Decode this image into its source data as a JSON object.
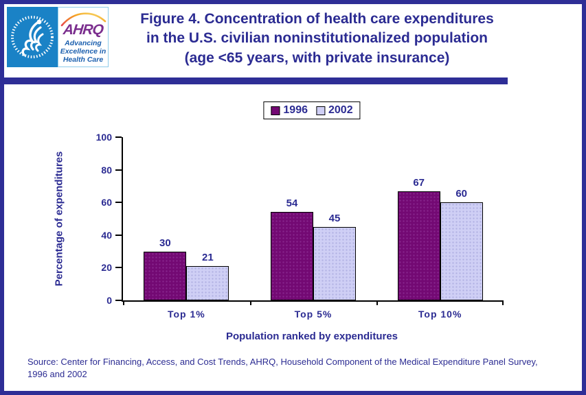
{
  "page": {
    "title_lines": [
      "Figure 4. Concentration of health care expenditures",
      "in the U.S. civilian noninstitutionalized population",
      "(age <65 years, with private insurance)"
    ],
    "source_note": "Source: Center for Financing, Access, and Cost Trends, AHRQ, Household Component of the Medical Expenditure Panel Survey,\n1996 and 2002"
  },
  "logo": {
    "hhs_icon": "hhs-eagle-seal",
    "ahrq_word": "AHRQ",
    "tagline_lines": [
      "Advancing",
      "Excellence in",
      "Health Care"
    ]
  },
  "colors": {
    "navy": "#2b2b92",
    "series_1996": "#730973",
    "series_2002": "#cfcff5",
    "hhs_blue": "#1a82c6",
    "ahrq_purple": "#7b2e8e",
    "tagline_blue": "#1b5fae"
  },
  "chart_data": {
    "type": "bar",
    "title": "",
    "categories": [
      "Top 1%",
      "Top 5%",
      "Top 10%"
    ],
    "series": [
      {
        "name": "1996",
        "color": "#730973",
        "values": [
          30,
          54,
          67
        ]
      },
      {
        "name": "2002",
        "color": "#cfcff5",
        "values": [
          21,
          45,
          60
        ]
      }
    ],
    "xlabel": "Population ranked by expenditures",
    "ylabel": "Percentage of expenditures",
    "ylim": [
      0,
      100
    ],
    "yticks": [
      0,
      20,
      40,
      60,
      80,
      100
    ],
    "grid": false,
    "legend_position": "top-center",
    "bar_value_labels": true
  }
}
